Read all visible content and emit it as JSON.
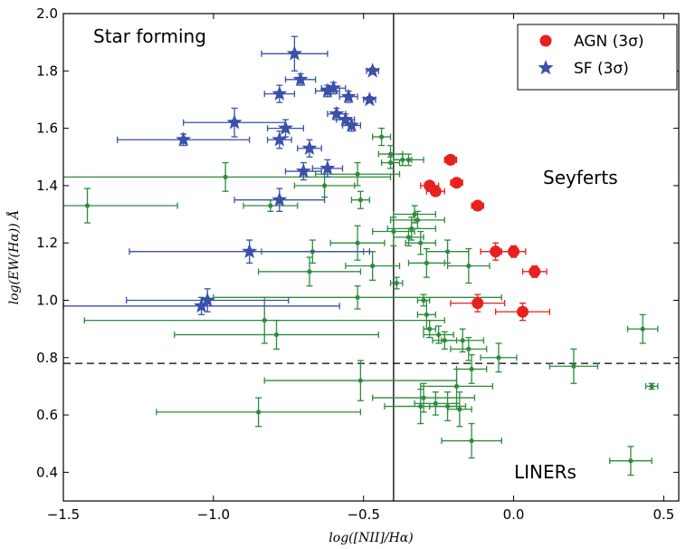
{
  "chart_data": {
    "type": "scatter",
    "xlabel": "log([NII]/Hα)",
    "ylabel": "log(EW(Hα)) Å",
    "xlim": [
      -1.5,
      0.55
    ],
    "ylim": [
      0.3,
      2.0
    ],
    "xticks": [
      "−1.5",
      "−1.0",
      "−0.5",
      "0.0",
      "0.5"
    ],
    "yticks": [
      "0.4",
      "0.6",
      "0.8",
      "1.0",
      "1.2",
      "1.4",
      "1.6",
      "1.8",
      "2.0"
    ],
    "grid": false,
    "legend_position": "top-right",
    "region_labels": [
      "Star forming",
      "Seyferts",
      "LINERs"
    ],
    "reference_lines": [
      {
        "orientation": "vertical",
        "x": -0.4,
        "style": "solid"
      },
      {
        "orientation": "horizontal",
        "y": 0.78,
        "style": "dashed"
      }
    ],
    "series": [
      {
        "name": "AGN (3σ)",
        "marker": "circle",
        "color": "#e8201e",
        "points": [
          {
            "x": -0.21,
            "y": 1.49,
            "xerr": 0.02,
            "yerr": 0.01
          },
          {
            "x": -0.28,
            "y": 1.4,
            "xerr": 0.03,
            "yerr": 0.01
          },
          {
            "x": -0.26,
            "y": 1.38,
            "xerr": 0.03,
            "yerr": 0.01
          },
          {
            "x": -0.19,
            "y": 1.41,
            "xerr": 0.02,
            "yerr": 0.01
          },
          {
            "x": -0.12,
            "y": 1.33,
            "xerr": 0.02,
            "yerr": 0.01
          },
          {
            "x": -0.06,
            "y": 1.17,
            "xerr": 0.05,
            "yerr": 0.03
          },
          {
            "x": 0.0,
            "y": 1.17,
            "xerr": 0.04,
            "yerr": 0.02
          },
          {
            "x": 0.07,
            "y": 1.1,
            "xerr": 0.04,
            "yerr": 0.02
          },
          {
            "x": -0.12,
            "y": 0.99,
            "xerr": 0.09,
            "yerr": 0.03
          },
          {
            "x": 0.03,
            "y": 0.96,
            "xerr": 0.09,
            "yerr": 0.03
          }
        ]
      },
      {
        "name": "SF (3σ)",
        "marker": "star",
        "color": "#3a51a8",
        "points": [
          {
            "x": -0.73,
            "y": 1.86,
            "xerr": 0.11,
            "yerr": 0.06
          },
          {
            "x": -0.71,
            "y": 1.77,
            "xerr": 0.05,
            "yerr": 0.02
          },
          {
            "x": -0.47,
            "y": 1.8,
            "xerr": 0.02,
            "yerr": 0.01
          },
          {
            "x": -0.78,
            "y": 1.72,
            "xerr": 0.05,
            "yerr": 0.03
          },
          {
            "x": -0.62,
            "y": 1.73,
            "xerr": 0.04,
            "yerr": 0.02
          },
          {
            "x": -0.6,
            "y": 1.74,
            "xerr": 0.04,
            "yerr": 0.02
          },
          {
            "x": -0.55,
            "y": 1.71,
            "xerr": 0.03,
            "yerr": 0.02
          },
          {
            "x": -0.48,
            "y": 1.7,
            "xerr": 0.02,
            "yerr": 0.01
          },
          {
            "x": -0.59,
            "y": 1.65,
            "xerr": 0.03,
            "yerr": 0.02
          },
          {
            "x": -0.56,
            "y": 1.63,
            "xerr": 0.03,
            "yerr": 0.02
          },
          {
            "x": -0.54,
            "y": 1.61,
            "xerr": 0.03,
            "yerr": 0.02
          },
          {
            "x": -0.93,
            "y": 1.62,
            "xerr": 0.17,
            "yerr": 0.05
          },
          {
            "x": -0.76,
            "y": 1.6,
            "xerr": 0.06,
            "yerr": 0.03
          },
          {
            "x": -0.78,
            "y": 1.56,
            "xerr": 0.04,
            "yerr": 0.03
          },
          {
            "x": -1.1,
            "y": 1.56,
            "xerr": 0.22,
            "yerr": 0.02
          },
          {
            "x": -0.68,
            "y": 1.53,
            "xerr": 0.04,
            "yerr": 0.03
          },
          {
            "x": -0.7,
            "y": 1.45,
            "xerr": 0.06,
            "yerr": 0.03
          },
          {
            "x": -0.62,
            "y": 1.46,
            "xerr": 0.05,
            "yerr": 0.03
          },
          {
            "x": -0.78,
            "y": 1.35,
            "xerr": 0.15,
            "yerr": 0.04
          },
          {
            "x": -0.88,
            "y": 1.17,
            "xerr": 0.4,
            "yerr": 0.04
          },
          {
            "x": -1.02,
            "y": 1.0,
            "xerr": 0.27,
            "yerr": 0.04
          },
          {
            "x": -1.04,
            "y": 0.98,
            "xerr": 0.46,
            "yerr": 0.03
          }
        ]
      },
      {
        "marker": "cross",
        "color": "#2e8b3e",
        "points": [
          {
            "x": -0.44,
            "y": 1.57,
            "xerr": 0.03,
            "yerr": 0.03
          },
          {
            "x": -0.41,
            "y": 1.51,
            "xerr": 0.04,
            "yerr": 0.03
          },
          {
            "x": -0.35,
            "y": 1.49,
            "xerr": 0.05,
            "yerr": 0.02
          },
          {
            "x": -0.41,
            "y": 1.48,
            "xerr": 0.03,
            "yerr": 0.02
          },
          {
            "x": -0.37,
            "y": 1.49,
            "xerr": 0.03,
            "yerr": 0.02
          },
          {
            "x": -0.96,
            "y": 1.43,
            "xerr": 0.55,
            "yerr": 0.05
          },
          {
            "x": -0.52,
            "y": 1.44,
            "xerr": 0.14,
            "yerr": 0.04
          },
          {
            "x": -0.63,
            "y": 1.4,
            "xerr": 0.1,
            "yerr": 0.04
          },
          {
            "x": -1.42,
            "y": 1.33,
            "xerr": 0.3,
            "yerr": 0.06
          },
          {
            "x": -0.81,
            "y": 1.33,
            "xerr": 0.09,
            "yerr": 0.02
          },
          {
            "x": -0.51,
            "y": 1.35,
            "xerr": 0.03,
            "yerr": 0.03
          },
          {
            "x": -0.33,
            "y": 1.3,
            "xerr": 0.07,
            "yerr": 0.03
          },
          {
            "x": -0.32,
            "y": 1.28,
            "xerr": 0.09,
            "yerr": 0.03
          },
          {
            "x": -0.34,
            "y": 1.25,
            "xerr": 0.08,
            "yerr": 0.04
          },
          {
            "x": -0.35,
            "y": 1.22,
            "xerr": 0.05,
            "yerr": 0.03
          },
          {
            "x": -0.52,
            "y": 1.2,
            "xerr": 0.09,
            "yerr": 0.06
          },
          {
            "x": -0.4,
            "y": 1.24,
            "xerr": 0.07,
            "yerr": 0.05
          },
          {
            "x": -0.31,
            "y": 1.2,
            "xerr": 0.05,
            "yerr": 0.04
          },
          {
            "x": -0.67,
            "y": 1.17,
            "xerr": 0.17,
            "yerr": 0.04
          },
          {
            "x": -0.22,
            "y": 1.17,
            "xerr": 0.07,
            "yerr": 0.04
          },
          {
            "x": -0.29,
            "y": 1.13,
            "xerr": 0.06,
            "yerr": 0.05
          },
          {
            "x": -0.47,
            "y": 1.12,
            "xerr": 0.09,
            "yerr": 0.05
          },
          {
            "x": -0.15,
            "y": 1.12,
            "xerr": 0.07,
            "yerr": 0.06
          },
          {
            "x": -0.68,
            "y": 1.1,
            "xerr": 0.17,
            "yerr": 0.05
          },
          {
            "x": -0.39,
            "y": 1.06,
            "xerr": 0.02,
            "yerr": 0.02
          },
          {
            "x": -0.52,
            "y": 1.01,
            "xerr": 0.48,
            "yerr": 0.04
          },
          {
            "x": -0.3,
            "y": 1.0,
            "xerr": 0.02,
            "yerr": 0.02
          },
          {
            "x": -0.29,
            "y": 0.95,
            "xerr": 0.03,
            "yerr": 0.05
          },
          {
            "x": -0.83,
            "y": 0.93,
            "xerr": 0.6,
            "yerr": 0.08
          },
          {
            "x": -0.79,
            "y": 0.88,
            "xerr": 0.34,
            "yerr": 0.05
          },
          {
            "x": -0.28,
            "y": 0.9,
            "xerr": 0.02,
            "yerr": 0.03
          },
          {
            "x": -0.25,
            "y": 0.88,
            "xerr": 0.05,
            "yerr": 0.03
          },
          {
            "x": -0.23,
            "y": 0.86,
            "xerr": 0.04,
            "yerr": 0.03
          },
          {
            "x": -0.17,
            "y": 0.86,
            "xerr": 0.07,
            "yerr": 0.04
          },
          {
            "x": -0.15,
            "y": 0.83,
            "xerr": 0.06,
            "yerr": 0.04
          },
          {
            "x": -0.05,
            "y": 0.8,
            "xerr": 0.06,
            "yerr": 0.05
          },
          {
            "x": 0.2,
            "y": 0.77,
            "xerr": 0.08,
            "yerr": 0.06
          },
          {
            "x": 0.43,
            "y": 0.9,
            "xerr": 0.05,
            "yerr": 0.05
          },
          {
            "x": -0.14,
            "y": 0.76,
            "xerr": 0.05,
            "yerr": 0.05
          },
          {
            "x": -0.51,
            "y": 0.72,
            "xerr": 0.32,
            "yerr": 0.07
          },
          {
            "x": -0.19,
            "y": 0.7,
            "xerr": 0.12,
            "yerr": 0.06
          },
          {
            "x": -0.3,
            "y": 0.66,
            "xerr": 0.17,
            "yerr": 0.05
          },
          {
            "x": -0.26,
            "y": 0.64,
            "xerr": 0.07,
            "yerr": 0.04
          },
          {
            "x": -0.31,
            "y": 0.63,
            "xerr": 0.12,
            "yerr": 0.06
          },
          {
            "x": -0.22,
            "y": 0.63,
            "xerr": 0.06,
            "yerr": 0.05
          },
          {
            "x": -0.18,
            "y": 0.62,
            "xerr": 0.04,
            "yerr": 0.06
          },
          {
            "x": -0.85,
            "y": 0.61,
            "xerr": 0.34,
            "yerr": 0.05
          },
          {
            "x": 0.46,
            "y": 0.7,
            "xerr": 0.02,
            "yerr": 0.01
          },
          {
            "x": -0.14,
            "y": 0.51,
            "xerr": 0.1,
            "yerr": 0.06
          },
          {
            "x": 0.39,
            "y": 0.44,
            "xerr": 0.07,
            "yerr": 0.05
          }
        ]
      }
    ]
  }
}
